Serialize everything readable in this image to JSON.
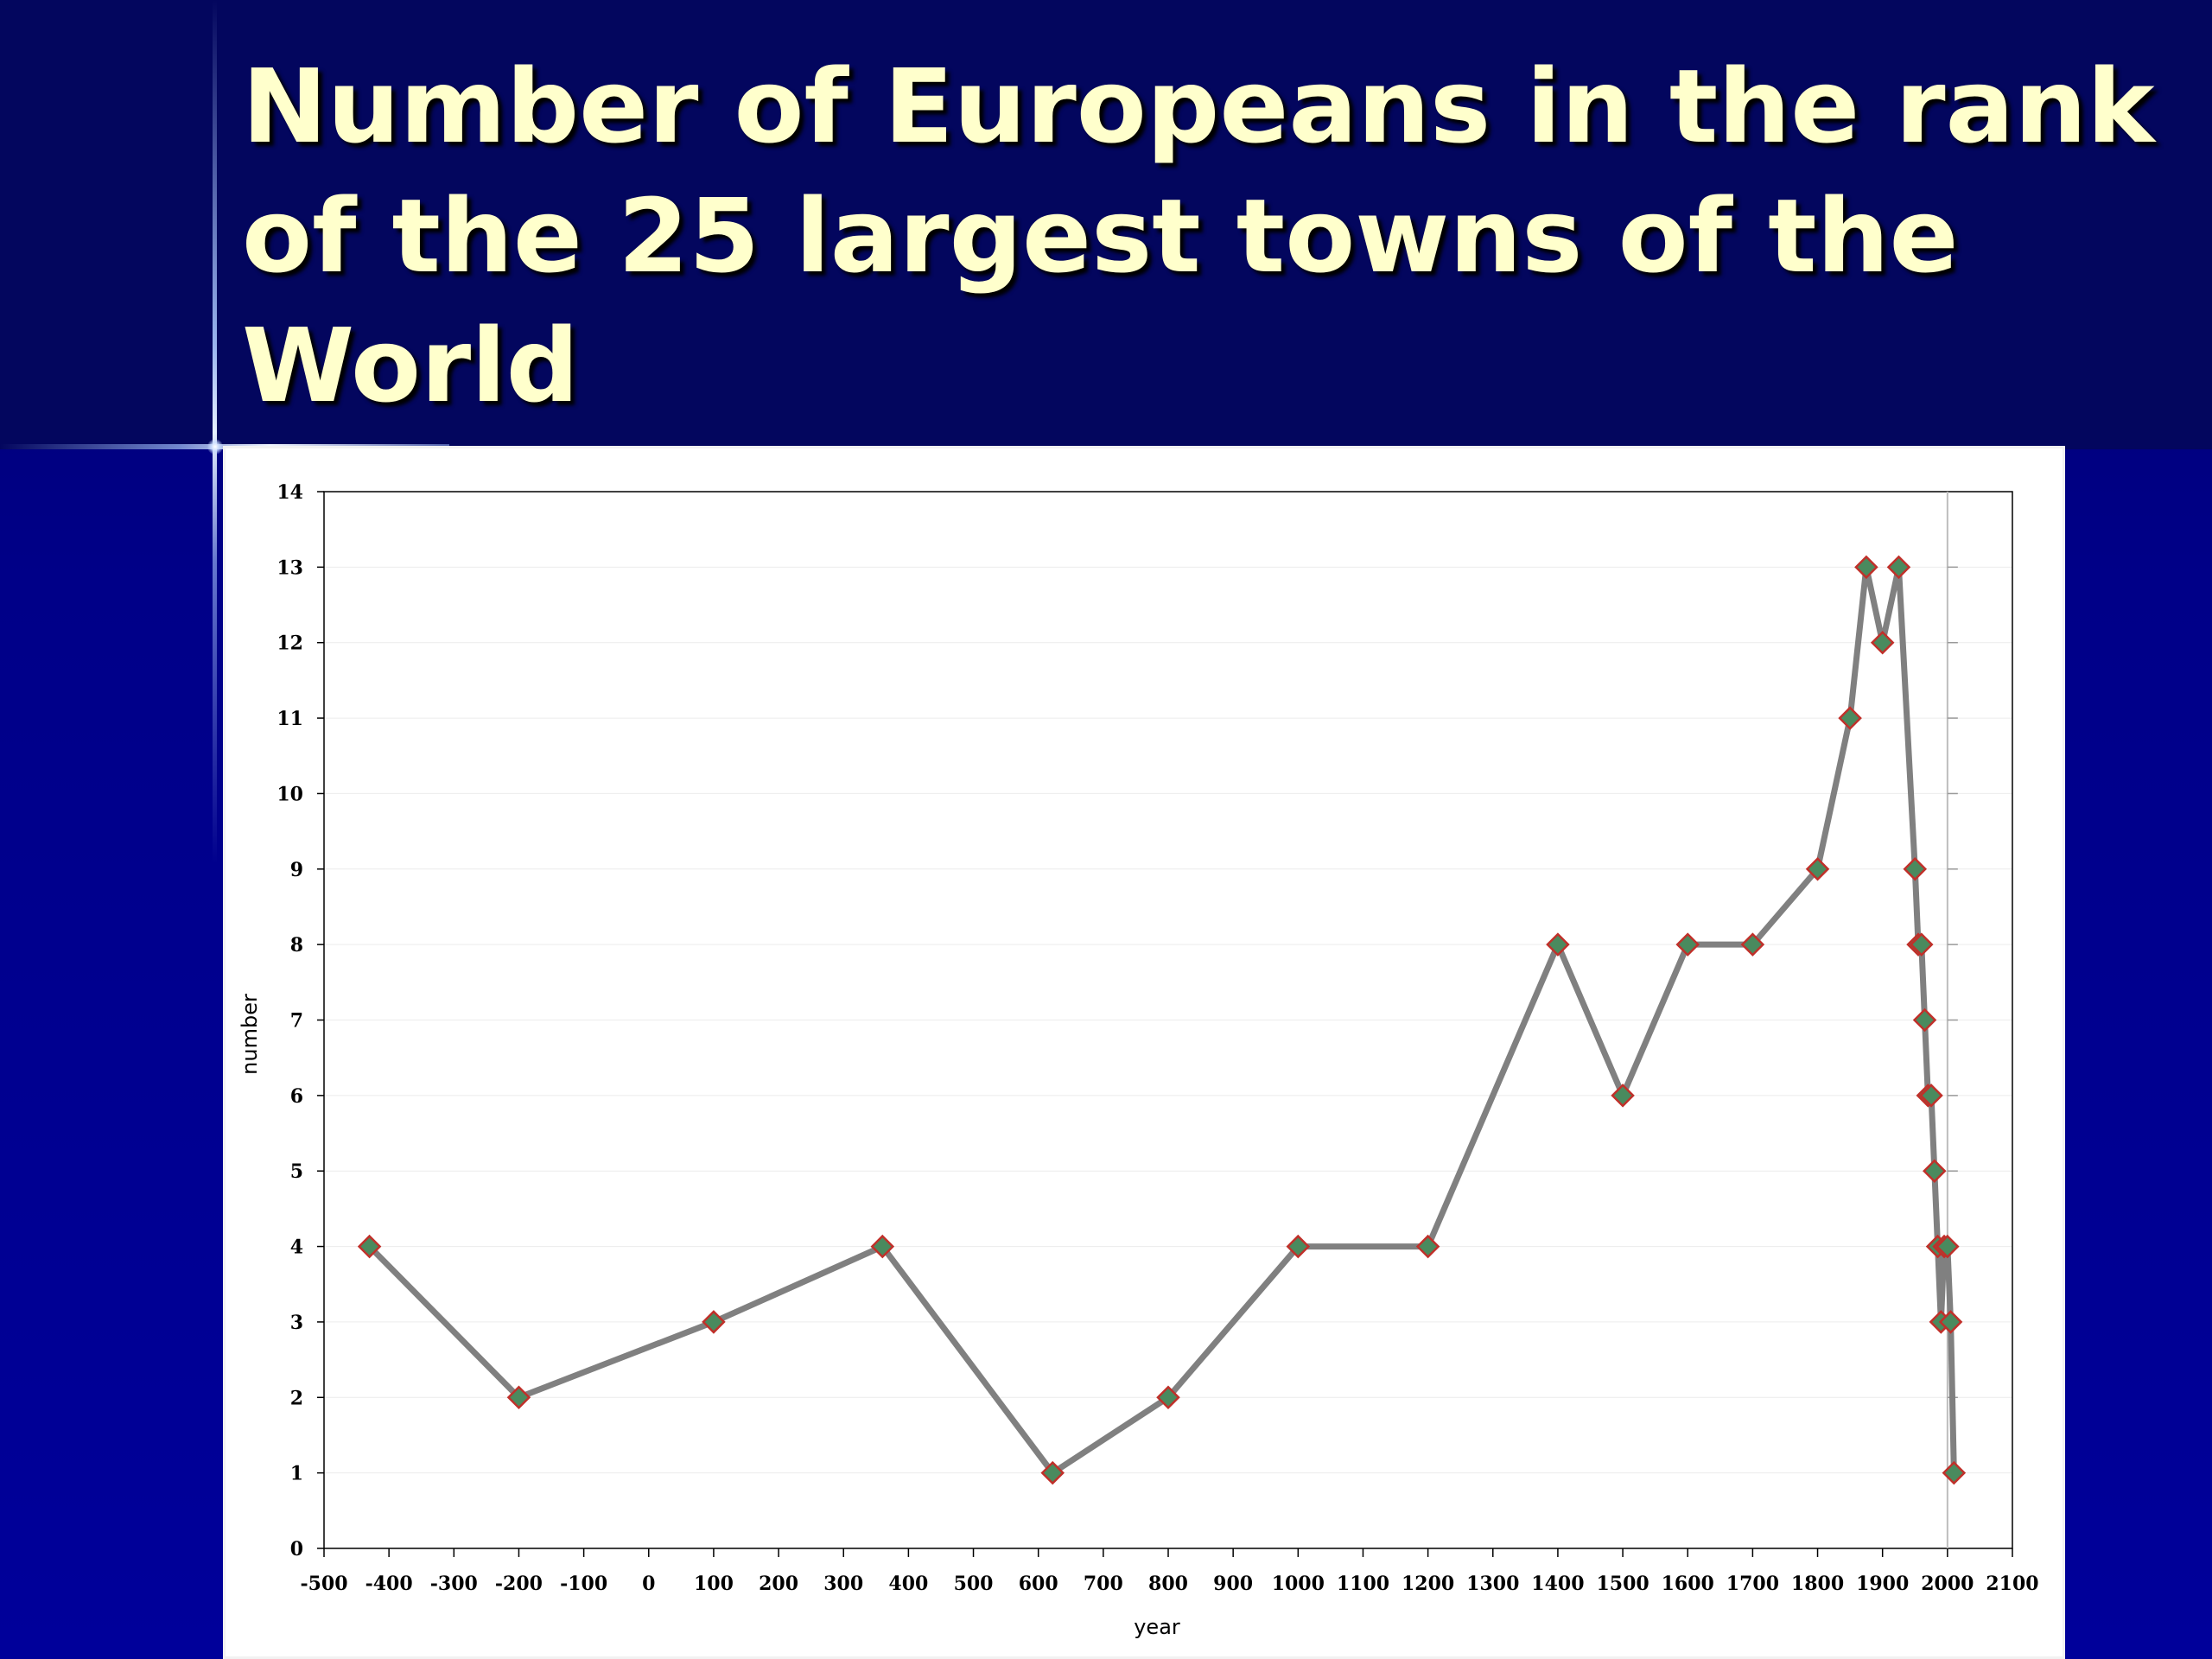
{
  "slide": {
    "title": "Number of Europeans in the rank\nof the 25 largest towns of the\nWorld"
  },
  "colors": {
    "background": "#00008c",
    "title_text": "#ffffcc",
    "line": "#808080",
    "marker_fill": "#4a8a5e",
    "marker_edge": "#c0302a"
  },
  "chart_data": {
    "type": "line",
    "title": "",
    "xlabel": "year",
    "ylabel": "number",
    "xlim": [
      -500,
      2100
    ],
    "ylim": [
      0,
      14
    ],
    "xticks": [
      -500,
      -400,
      -300,
      -200,
      -100,
      0,
      100,
      200,
      300,
      400,
      500,
      600,
      700,
      800,
      900,
      1000,
      1100,
      1200,
      1300,
      1400,
      1500,
      1600,
      1700,
      1800,
      1900,
      2000,
      2100
    ],
    "yticks": [
      0,
      1,
      2,
      3,
      4,
      5,
      6,
      7,
      8,
      9,
      10,
      11,
      12,
      13,
      14
    ],
    "grid": true,
    "legend": "none",
    "series": [
      {
        "marker": "diamond",
        "x": [
          -430,
          -200,
          100,
          360,
          622,
          800,
          1000,
          1200,
          1400,
          1500,
          1600,
          1700,
          1800,
          1850,
          1875,
          1900,
          1925,
          1950,
          1955,
          1960,
          1965,
          1970,
          1975,
          1980,
          1985,
          1990,
          1995,
          2000,
          2005,
          2010
        ],
        "y": [
          4,
          2,
          3,
          4,
          1,
          2,
          4,
          4,
          8,
          6,
          8,
          8,
          9,
          11,
          13,
          12,
          13,
          9,
          8,
          8,
          7,
          6,
          6,
          5,
          4,
          3,
          4,
          4,
          3,
          1
        ]
      }
    ]
  }
}
